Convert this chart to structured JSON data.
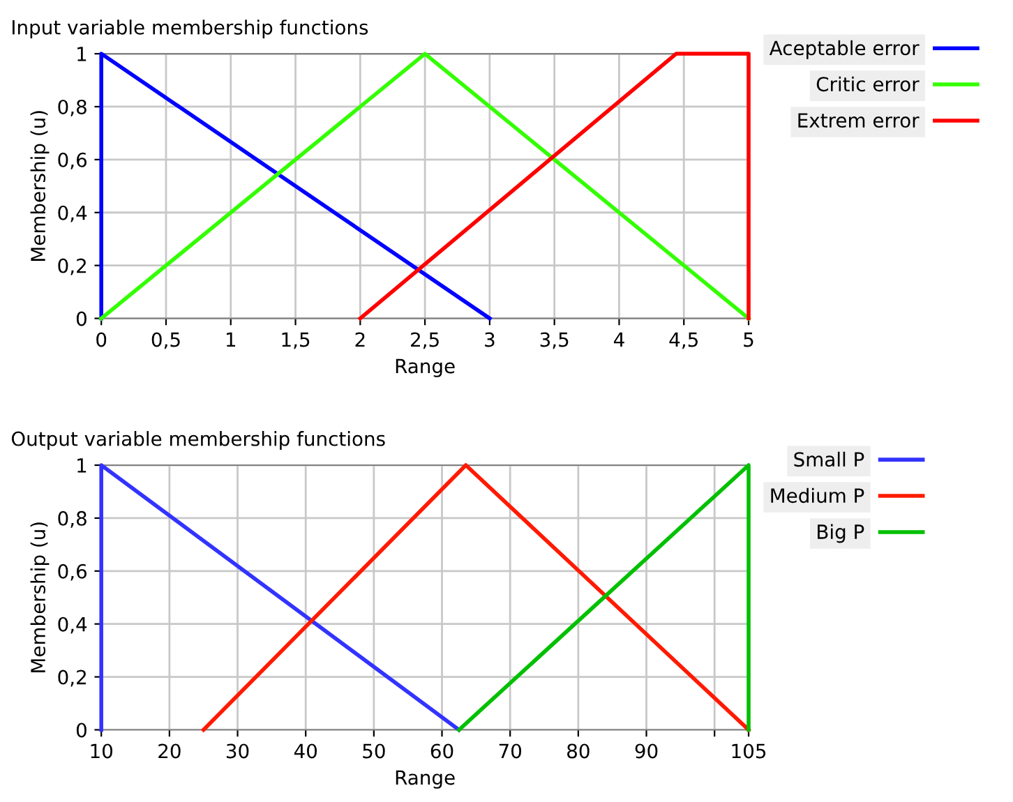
{
  "chart_data": [
    {
      "type": "line",
      "title": "Input variable membership functions",
      "xlabel": "Range",
      "ylabel": "Membership (u)",
      "xlim": [
        0,
        5
      ],
      "ylim": [
        0,
        1
      ],
      "xticks": [
        0,
        {
          "value": 0.5,
          "label": "0,5"
        },
        1,
        {
          "value": 1.5,
          "label": "1,5"
        },
        2,
        {
          "value": 2.5,
          "label": "2,5"
        },
        3,
        {
          "value": 3.5,
          "label": "3,5"
        },
        4,
        {
          "value": 4.5,
          "label": "4,5"
        },
        5
      ],
      "yticks": [
        0,
        {
          "value": 0.2,
          "label": "0,2"
        },
        {
          "value": 0.4,
          "label": "0,4"
        },
        {
          "value": 0.6,
          "label": "0,6"
        },
        {
          "value": 0.8,
          "label": "0,8"
        },
        1
      ],
      "grid": true,
      "legend": "right",
      "marker": "none",
      "line_style": "solid",
      "series": [
        {
          "name": "Aceptable error",
          "color": "#0000ff",
          "x": [
            0,
            0,
            3
          ],
          "values": [
            0,
            1,
            0
          ]
        },
        {
          "name": "Critic error",
          "color": "#33ff00",
          "x": [
            0,
            2.5,
            5
          ],
          "values": [
            0,
            1,
            0
          ]
        },
        {
          "name": "Extrem error",
          "color": "#ff0000",
          "x": [
            2,
            4.44,
            5,
            5
          ],
          "values": [
            0,
            1,
            1,
            0
          ]
        }
      ]
    },
    {
      "type": "line",
      "title": "Output variable membership functions",
      "xlabel": "Range",
      "ylabel": "Membership (u)",
      "xlim": [
        10,
        105
      ],
      "ylim": [
        0,
        1
      ],
      "xticks": [
        10,
        20,
        30,
        40,
        50,
        60,
        70,
        80,
        90,
        {
          "value": 100,
          "label": null
        },
        105
      ],
      "yticks": [
        0,
        {
          "value": 0.2,
          "label": "0,2"
        },
        {
          "value": 0.4,
          "label": "0,4"
        },
        {
          "value": 0.6,
          "label": "0,6"
        },
        {
          "value": 0.8,
          "label": "0,8"
        },
        1
      ],
      "grid": true,
      "legend": "right",
      "marker": "none",
      "line_style": "solid",
      "series": [
        {
          "name": "Small P",
          "color": "#3333ff",
          "x": [
            10,
            10,
            62.5
          ],
          "values": [
            0,
            1,
            0
          ]
        },
        {
          "name": "Medium P",
          "color": "#ff1a00",
          "x": [
            25,
            63.5,
            105
          ],
          "values": [
            0,
            1,
            0
          ]
        },
        {
          "name": "Big P",
          "color": "#00c000",
          "x": [
            62.5,
            105,
            105
          ],
          "values": [
            0,
            1,
            0
          ]
        }
      ]
    }
  ]
}
